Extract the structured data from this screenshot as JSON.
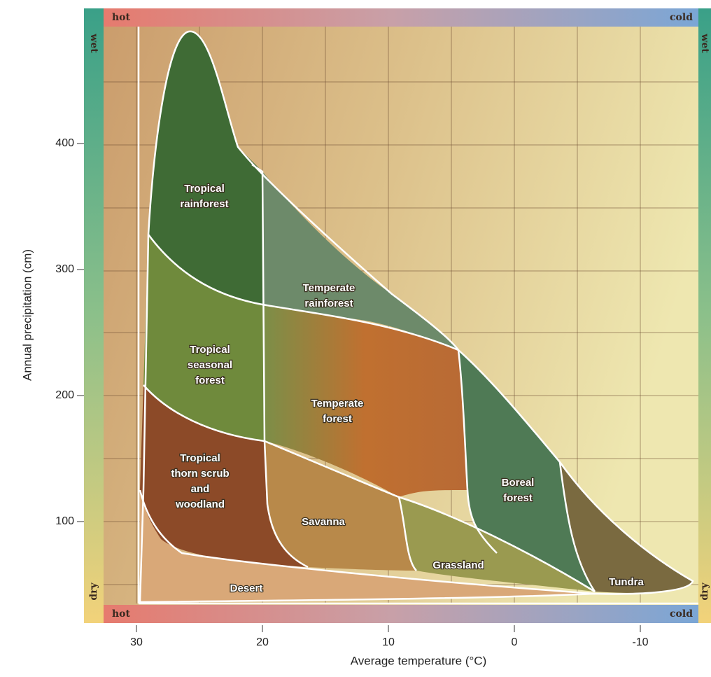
{
  "corner_labels": {
    "top_left": "hot",
    "top_right": "cold",
    "bottom_left": "hot",
    "bottom_right": "cold",
    "left_top": "wet",
    "left_bottom": "dry",
    "right_top": "wet",
    "right_bottom": "dry"
  },
  "x_axis": {
    "label": "Average temperature (°C)",
    "ticks": [
      30,
      20,
      10,
      0,
      -10
    ]
  },
  "y_axis": {
    "label": "Annual precipitation (cm)",
    "ticks": [
      100,
      200,
      300,
      400
    ]
  },
  "biomes": [
    {
      "label": [
        "Tropical",
        "rainforest"
      ]
    },
    {
      "label": [
        "Temperate",
        "rainforest"
      ]
    },
    {
      "label": [
        "Tropical",
        "seasonal",
        "forest"
      ]
    },
    {
      "label": [
        "Temperate",
        "forest"
      ]
    },
    {
      "label": [
        "Tropical",
        "thorn scrub",
        "and",
        "woodland"
      ]
    },
    {
      "label": [
        "Savanna"
      ]
    },
    {
      "label": [
        "Boreal",
        "forest"
      ]
    },
    {
      "label": [
        "Grassland"
      ]
    },
    {
      "label": [
        "Tundra"
      ]
    },
    {
      "label": [
        "Desert"
      ]
    }
  ]
}
